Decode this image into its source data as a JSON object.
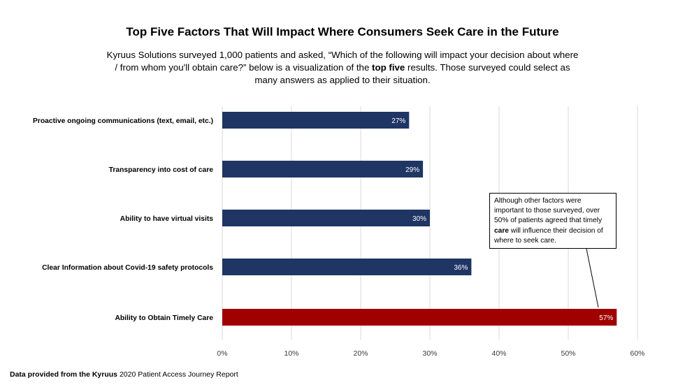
{
  "title": "Top Five Factors That Will Impact Where Consumers Seek Care in the Future",
  "subtitle": {
    "before_bold": "Kyruus Solutions surveyed 1,000 patients and asked, “Which of the following will impact your decision about where / from whom you'll obtain care?” below is a visualization of the ",
    "bold": "top five",
    "after_bold": " results. Those surveyed could select as many answers as applied to their situation."
  },
  "callout": {
    "before_bold": "Although other factors were important to those surveyed, over 50% of patients agreed that timely ",
    "bold": "care",
    "after_bold": " will influence their decision of where to seek care."
  },
  "footnote": {
    "bold": "Data provided from the Kyruus",
    "rest": " 2020 Patient Access Journey Report"
  },
  "colors": {
    "default_bar": "#1f3564",
    "highlight_bar": "#a00000",
    "gridline": "#d9d9d9"
  },
  "chart_data": {
    "type": "bar",
    "orientation": "horizontal",
    "categories": [
      "Proactive ongoing communications (text, email, etc.)",
      "Transparency into cost of care",
      "Ability to have virtual visits",
      "Clear Information about Covid-19 safety protocols",
      "Ability to Obtain Timely Care"
    ],
    "values": [
      27,
      29,
      30,
      36,
      57
    ],
    "data_labels": [
      "27%",
      "29%",
      "30%",
      "36%",
      "57%"
    ],
    "highlight_index": 4,
    "xlim": [
      0,
      60
    ],
    "x_ticks": [
      0,
      10,
      20,
      30,
      40,
      50,
      60
    ],
    "x_tick_labels": [
      "0%",
      "10%",
      "20%",
      "30%",
      "40%",
      "50%",
      "60%"
    ],
    "grid": true,
    "legend": "none"
  }
}
